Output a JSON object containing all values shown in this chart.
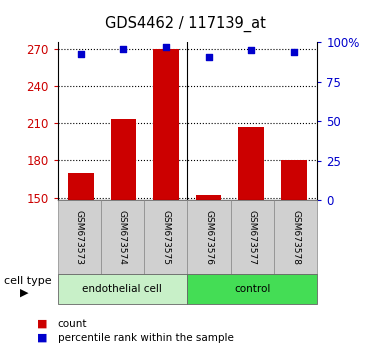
{
  "title": "GDS4462 / 117139_at",
  "samples": [
    "GSM673573",
    "GSM673574",
    "GSM673575",
    "GSM673576",
    "GSM673577",
    "GSM673578"
  ],
  "bar_values": [
    170,
    213,
    270,
    152,
    207,
    180
  ],
  "bar_baseline": 148,
  "percentile_values": [
    93,
    96,
    97,
    91,
    95,
    94
  ],
  "left_ylim": [
    148,
    275
  ],
  "left_yticks": [
    150,
    180,
    210,
    240,
    270
  ],
  "right_ylim": [
    0,
    100
  ],
  "right_yticks": [
    0,
    25,
    50,
    75,
    100
  ],
  "right_yticklabels": [
    "0",
    "25",
    "50",
    "75",
    "100%"
  ],
  "bar_color": "#cc0000",
  "dot_color": "#0000cc",
  "groups": [
    {
      "label": "endothelial cell",
      "indices": [
        0,
        1,
        2
      ],
      "facecolor": "#c8f0c8"
    },
    {
      "label": "control",
      "indices": [
        3,
        4,
        5
      ],
      "facecolor": "#44dd55"
    }
  ],
  "sample_box_color": "#d0d0d0",
  "cell_type_label": "cell type",
  "legend_entries": [
    {
      "color": "#cc0000",
      "label": "count"
    },
    {
      "color": "#0000cc",
      "label": "percentile rank within the sample"
    }
  ],
  "left_label_color": "#cc0000",
  "right_label_color": "#0000cc",
  "bar_width": 0.6,
  "figsize": [
    3.71,
    3.54
  ],
  "dpi": 100
}
